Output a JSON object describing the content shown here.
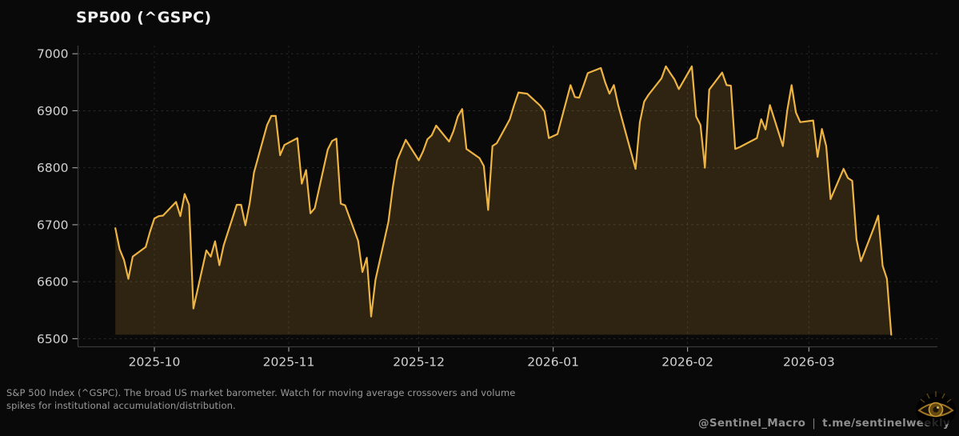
{
  "header": {
    "title": "SP500 (^GSPC)"
  },
  "chart_data": {
    "type": "area",
    "title": "SP500 (^GSPC)",
    "xlabel": "",
    "ylabel": "",
    "ylim": [
      6487,
      7015
    ],
    "grid": true,
    "legend": "none",
    "line_color": "#edb443",
    "fill_color": "rgba(240,182,63,0.16)",
    "yticks": [
      7000,
      6900,
      6800,
      6700,
      6600,
      6500
    ],
    "xticks": [
      {
        "date": "2025-10-01",
        "label": "2025-10"
      },
      {
        "date": "2025-11-01",
        "label": "2025-11"
      },
      {
        "date": "2025-12-01",
        "label": "2025-12"
      },
      {
        "date": "2026-01-01",
        "label": "2026-01"
      },
      {
        "date": "2026-02-01",
        "label": "2026-02"
      },
      {
        "date": "2026-03-01",
        "label": "2026-03"
      }
    ],
    "dates": [
      "2025-09-22",
      "2025-09-23",
      "2025-09-24",
      "2025-09-25",
      "2025-09-26",
      "2025-09-29",
      "2025-09-30",
      "2025-10-01",
      "2025-10-02",
      "2025-10-03",
      "2025-10-06",
      "2025-10-07",
      "2025-10-08",
      "2025-10-09",
      "2025-10-10",
      "2025-10-13",
      "2025-10-14",
      "2025-10-15",
      "2025-10-16",
      "2025-10-17",
      "2025-10-20",
      "2025-10-21",
      "2025-10-22",
      "2025-10-23",
      "2025-10-24",
      "2025-10-27",
      "2025-10-28",
      "2025-10-29",
      "2025-10-30",
      "2025-10-31",
      "2025-11-03",
      "2025-11-04",
      "2025-11-05",
      "2025-11-06",
      "2025-11-07",
      "2025-11-10",
      "2025-11-11",
      "2025-11-12",
      "2025-11-13",
      "2025-11-14",
      "2025-11-17",
      "2025-11-18",
      "2025-11-19",
      "2025-11-20",
      "2025-11-21",
      "2025-11-24",
      "2025-11-25",
      "2025-11-26",
      "2025-11-28",
      "2025-12-01",
      "2025-12-02",
      "2025-12-03",
      "2025-12-04",
      "2025-12-05",
      "2025-12-08",
      "2025-12-09",
      "2025-12-10",
      "2025-12-11",
      "2025-12-12",
      "2025-12-15",
      "2025-12-16",
      "2025-12-17",
      "2025-12-18",
      "2025-12-19",
      "2025-12-22",
      "2025-12-23",
      "2025-12-24",
      "2025-12-26",
      "2025-12-29",
      "2025-12-30",
      "2025-12-31",
      "2026-01-02",
      "2026-01-05",
      "2026-01-06",
      "2026-01-07",
      "2026-01-08",
      "2026-01-09",
      "2026-01-12",
      "2026-01-13",
      "2026-01-14",
      "2026-01-15",
      "2026-01-16",
      "2026-01-20",
      "2026-01-21",
      "2026-01-22",
      "2026-01-23",
      "2026-01-26",
      "2026-01-27",
      "2026-01-28",
      "2026-01-29",
      "2026-01-30",
      "2026-02-02",
      "2026-02-03",
      "2026-02-04",
      "2026-02-05",
      "2026-02-06",
      "2026-02-09",
      "2026-02-10",
      "2026-02-11",
      "2026-02-12",
      "2026-02-13",
      "2026-02-17",
      "2026-02-18",
      "2026-02-19",
      "2026-02-20",
      "2026-02-23",
      "2026-02-24",
      "2026-02-25",
      "2026-02-26",
      "2026-02-27",
      "2026-03-02",
      "2026-03-03",
      "2026-03-04",
      "2026-03-05",
      "2026-03-06",
      "2026-03-09",
      "2026-03-10",
      "2026-03-11",
      "2026-03-12",
      "2026-03-13",
      "2026-03-16",
      "2026-03-17",
      "2026-03-18",
      "2026-03-19",
      "2026-03-20"
    ],
    "values": [
      6694,
      6657,
      6638,
      6605,
      6644,
      6661,
      6688,
      6711,
      6715,
      6716,
      6740,
      6715,
      6754,
      6735,
      6553,
      6655,
      6644,
      6671,
      6629,
      6664,
      6735,
      6735,
      6699,
      6738,
      6792,
      6875,
      6891,
      6891,
      6822,
      6840,
      6852,
      6772,
      6796,
      6720,
      6729,
      6832,
      6847,
      6851,
      6737,
      6734,
      6672,
      6617,
      6642,
      6539,
      6603,
      6705,
      6766,
      6813,
      6849,
      6813,
      6829,
      6850,
      6857,
      6874,
      6846,
      6864,
      6890,
      6903,
      6833,
      6817,
      6803,
      6726,
      6838,
      6843,
      6885,
      6910,
      6932,
      6930,
      6909,
      6899,
      6852,
      6859,
      6945,
      6924,
      6923,
      6944,
      6966,
      6975,
      6950,
      6930,
      6945,
      6910,
      6798,
      6880,
      6916,
      6928,
      6957,
      6978,
      6966,
      6955,
      6938,
      6978,
      6890,
      6875,
      6800,
      6937,
      6967,
      6945,
      6944,
      6833,
      6836,
      6852,
      6885,
      6867,
      6910,
      6838,
      6900,
      6945,
      6897,
      6880,
      6883,
      6819,
      6868,
      6838,
      6745,
      6798,
      6782,
      6777,
      6674,
      6636,
      6695,
      6716,
      6628,
      6605,
      6507
    ]
  },
  "style": {
    "grid_color": "#2b2b2b",
    "spine_color": "#3a3a3a",
    "tick_color": "#9a9a9a",
    "tick_label_color": "#d2d2d2"
  },
  "footer": {
    "line1": "S&P 500 Index (^GSPC). The broad US market barometer. Watch for moving average crossovers and volume",
    "line2": "spikes for institutional accumulation/distribution."
  },
  "watermark": {
    "handle": "@Sentinel_Macro",
    "separator": "|",
    "url": "t.me/sentinelweekly"
  }
}
